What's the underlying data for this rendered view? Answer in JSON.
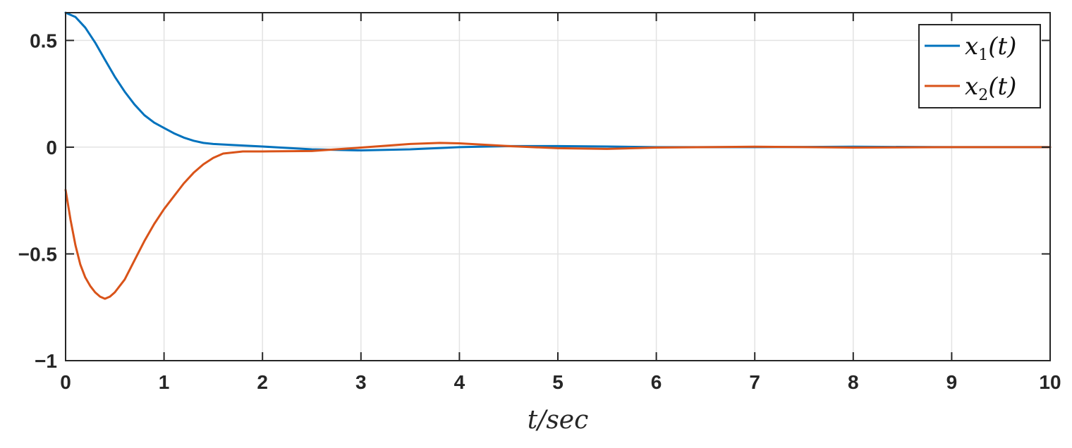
{
  "chart_data": {
    "type": "line",
    "xlabel": "t/sec",
    "ylabel": "",
    "xlim": [
      0,
      10
    ],
    "ylim": [
      -1,
      0.63
    ],
    "x_ticks": [
      0,
      1,
      2,
      3,
      4,
      5,
      6,
      7,
      8,
      9,
      10
    ],
    "x_tick_labels": [
      "0",
      "1",
      "2",
      "3",
      "4",
      "5",
      "6",
      "7",
      "8",
      "9",
      "10"
    ],
    "y_ticks": [
      -1,
      -0.5,
      0,
      0.5
    ],
    "y_tick_labels": [
      "−1",
      "−0.5",
      "0",
      "0.5"
    ],
    "grid": true,
    "legend_position": "top-right",
    "series": [
      {
        "name": "x1(t)",
        "legend_main": "x",
        "legend_sub": "1",
        "legend_tail": "(t)",
        "color": "#0072BD",
        "x": [
          0,
          0.1,
          0.2,
          0.3,
          0.4,
          0.5,
          0.6,
          0.7,
          0.8,
          0.9,
          1.0,
          1.1,
          1.2,
          1.3,
          1.4,
          1.5,
          1.7,
          2.0,
          2.5,
          3.0,
          3.5,
          4.0,
          4.5,
          5.0,
          5.5,
          6.0,
          7.0,
          8.0,
          9.0,
          10.0
        ],
        "y": [
          0.63,
          0.61,
          0.56,
          0.49,
          0.41,
          0.33,
          0.26,
          0.2,
          0.15,
          0.115,
          0.09,
          0.065,
          0.045,
          0.03,
          0.02,
          0.015,
          0.01,
          0.003,
          -0.01,
          -0.015,
          -0.01,
          0.0,
          0.005,
          0.005,
          0.003,
          0.0,
          0.0,
          0.002,
          0.0,
          0.0
        ]
      },
      {
        "name": "x2(t)",
        "legend_main": "x",
        "legend_sub": "2",
        "legend_tail": "(t)",
        "color": "#D95319",
        "x": [
          0,
          0.05,
          0.1,
          0.15,
          0.2,
          0.25,
          0.3,
          0.35,
          0.4,
          0.45,
          0.5,
          0.6,
          0.7,
          0.8,
          0.9,
          1.0,
          1.1,
          1.2,
          1.3,
          1.4,
          1.5,
          1.6,
          1.8,
          2.0,
          2.5,
          3.0,
          3.5,
          3.8,
          4.0,
          4.5,
          5.0,
          5.5,
          6.0,
          7.0,
          8.0,
          9.0,
          10.0
        ],
        "y": [
          -0.2,
          -0.34,
          -0.46,
          -0.55,
          -0.61,
          -0.65,
          -0.68,
          -0.7,
          -0.71,
          -0.7,
          -0.68,
          -0.62,
          -0.53,
          -0.44,
          -0.36,
          -0.29,
          -0.23,
          -0.17,
          -0.12,
          -0.08,
          -0.05,
          -0.03,
          -0.02,
          -0.02,
          -0.018,
          -0.002,
          0.015,
          0.02,
          0.018,
          0.005,
          -0.005,
          -0.008,
          -0.002,
          0.002,
          -0.002,
          0.0,
          0.0
        ]
      }
    ]
  }
}
